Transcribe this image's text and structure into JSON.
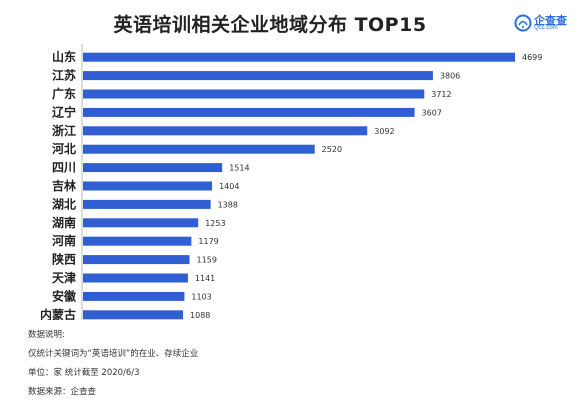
{
  "chart_data": {
    "type": "bar",
    "orientation": "horizontal",
    "title": "英语培训相关企业地域分布 TOP15",
    "categories": [
      "山东",
      "江苏",
      "广东",
      "辽宁",
      "浙江",
      "河北",
      "四川",
      "吉林",
      "湖北",
      "湖南",
      "河南",
      "陕西",
      "天津",
      "安徽",
      "内蒙古"
    ],
    "values": [
      4699,
      3806,
      3712,
      3607,
      3092,
      2520,
      1514,
      1404,
      1388,
      1253,
      1179,
      1159,
      1141,
      1103,
      1088
    ],
    "bar_color": "#2f5fd3",
    "grid": false,
    "legend": "none"
  },
  "logo": {
    "name": "企查查",
    "sub": "Qcc.com",
    "color": "#2a6fdb"
  },
  "notes": {
    "heading": "数据说明:",
    "line1": "仅统计关键词为“英语培训”的在业、存续企业",
    "line2": "单位：家 统计截至 2020/6/3",
    "line3": "数据来源：企查查"
  }
}
